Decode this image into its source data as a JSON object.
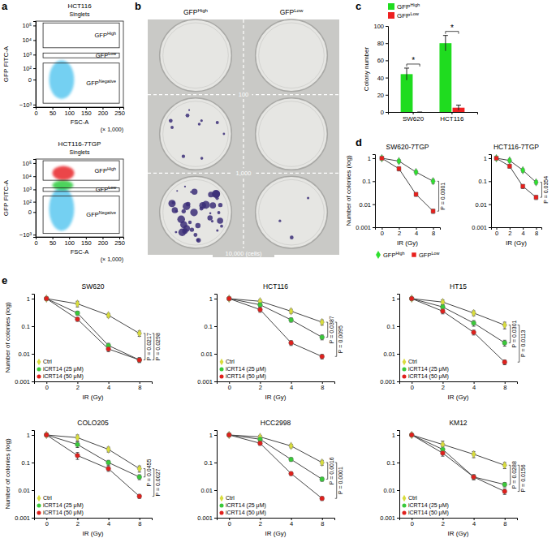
{
  "chart_data": [
    {
      "panel": "a",
      "type": "scatter",
      "title": "HCT116",
      "subtitle": "Singlets",
      "x_label": "FSC-A",
      "x_unit": "(× 1,000)",
      "y_label": "GFP FITC-A",
      "log": "y",
      "xlim": [
        0,
        262
      ],
      "xticks": [
        0,
        50,
        100,
        150,
        200,
        250
      ],
      "ylim": [
        -1500,
        200000
      ],
      "yticks": [
        {
          "value": -1000,
          "label": "−10³"
        },
        0,
        {
          "value": 100,
          "label": "10²"
        },
        {
          "value": 1000,
          "label": "10³"
        },
        {
          "value": 10000,
          "label": "10⁴"
        },
        {
          "value": 100000,
          "label": "10⁵"
        }
      ],
      "gates": [
        {
          "name": "GFPHigh",
          "x": [
            22,
            250
          ],
          "y": [
            3000,
            150000
          ]
        },
        {
          "name": "GFPLow",
          "x": [
            22,
            250
          ],
          "y": [
            600,
            1300
          ]
        },
        {
          "name": "GFPNegative",
          "x": [
            22,
            250
          ],
          "y": [
            -800,
            250
          ]
        }
      ],
      "clusters": [
        {
          "color": "#5bc8f0",
          "x": [
            40,
            115
          ],
          "y": [
            -400,
            400
          ]
        }
      ]
    },
    {
      "type": "scatter",
      "title": "HCT116-7TGP",
      "subtitle": "Singlets",
      "x_label": "FSC-A",
      "x_unit": "(× 1,000)",
      "y_label": "GFP FITC-A",
      "log": "y",
      "xlim": [
        0,
        262
      ],
      "xticks": [
        0,
        50,
        100,
        150,
        200,
        250
      ],
      "ylim": [
        -1500,
        200000
      ],
      "yticks": [
        {
          "value": -1000,
          "label": "−10³"
        },
        0,
        {
          "value": 100,
          "label": "10²"
        },
        {
          "value": 1000,
          "label": "10³"
        },
        {
          "value": 10000,
          "label": "10⁴"
        },
        {
          "value": 100000,
          "label": "10⁵"
        }
      ],
      "gates": [
        {
          "name": "GFPHigh",
          "x": [
            22,
            250
          ],
          "y": [
            5000,
            150000
          ]
        },
        {
          "name": "GFPLow",
          "x": [
            22,
            250
          ],
          "y": [
            700,
            1300
          ]
        },
        {
          "name": "GFPNegative",
          "x": [
            22,
            250
          ],
          "y": [
            -800,
            300
          ]
        }
      ],
      "clusters": [
        {
          "color": "#5bc8f0",
          "x": [
            40,
            115
          ],
          "y": [
            -500,
            1500
          ]
        },
        {
          "color": "#2ecc40",
          "x": [
            50,
            112
          ],
          "y": [
            900,
            5000
          ]
        },
        {
          "color": "#e8262a",
          "x": [
            50,
            115
          ],
          "y": [
            5000,
            60000
          ]
        }
      ]
    },
    {
      "panel": "b",
      "type": "image",
      "column_labels": [
        "GFPHigh",
        "GFPLow"
      ],
      "row_labels": [
        "100",
        "1,000",
        "10,000 (cells)"
      ]
    },
    {
      "panel": "c",
      "type": "bar",
      "y_label": "Colony number",
      "categories": [
        "SW620",
        "HCT116"
      ],
      "legend": "top-left",
      "ylim": [
        0,
        100
      ],
      "yticks": [
        0,
        20,
        40,
        60,
        80,
        100
      ],
      "series": [
        {
          "name": "GFPHigh",
          "color": "#1fdc1f",
          "values": [
            44,
            80
          ],
          "errors": [
            7,
            9
          ]
        },
        {
          "name": "GFPLow",
          "color": "#ee2020",
          "values": [
            0,
            5
          ],
          "errors": [
            0,
            3
          ]
        }
      ],
      "annotations": [
        "*",
        "*"
      ]
    },
    {
      "panel": "d",
      "type": "line",
      "title": "SW620-7TGP",
      "x_label": "IR (Gy)",
      "y_label": "Number of colonies (log)",
      "categories": [
        "0",
        "2",
        "4",
        "8"
      ],
      "log": "y",
      "legend": "bottom",
      "ylim": [
        0.001,
        1.5
      ],
      "yticks": [
        0.001,
        0.01,
        0.1,
        1
      ],
      "series": [
        {
          "name": "GFPHigh",
          "color": "#2ee02e",
          "marker": "diamond",
          "values": [
            1,
            0.75,
            0.25,
            0.1
          ],
          "errors": [
            0.05,
            0.12,
            0.04,
            0.02
          ]
        },
        {
          "name": "GFPLow",
          "color": "#e8201c",
          "marker": "square",
          "values": [
            1,
            0.35,
            0.027,
            0.005
          ],
          "errors": [
            0.05,
            0.07,
            0.005,
            0.001
          ]
        }
      ],
      "annotations": [
        "P = 0.0001"
      ]
    },
    {
      "type": "line",
      "title": "HCT116-7TGP",
      "x_label": "IR (Gy)",
      "categories": [
        "0",
        "2",
        "4",
        "8"
      ],
      "log": "y",
      "ylim": [
        0.001,
        1.5
      ],
      "yticks": [
        0.001,
        0.01,
        0.1,
        1
      ],
      "series": [
        {
          "color": "#2ee02e",
          "marker": "diamond",
          "values": [
            1,
            0.8,
            0.3,
            0.09
          ],
          "errors": [
            0.05,
            0.12,
            0.05,
            0.015
          ]
        },
        {
          "color": "#e8201c",
          "marker": "square",
          "values": [
            1,
            0.45,
            0.06,
            0.02
          ],
          "errors": [
            0.05,
            0.08,
            0.012,
            0.004
          ]
        }
      ],
      "annotations": [
        "P = 0.0354"
      ]
    },
    {
      "panel": "e",
      "type": "line",
      "title": "SW620",
      "x_label": "IR (Gy)",
      "y_label": "Number of colonies (log)",
      "categories": [
        "0",
        "2",
        "4",
        "8"
      ],
      "log": "y",
      "legend": "bottom-left",
      "ylim": [
        0.001,
        1.5
      ],
      "yticks": [
        0.001,
        0.01,
        0.1,
        1
      ],
      "series": [
        {
          "name": "Ctrl",
          "color": "#d8dc3c",
          "marker": "diamond",
          "values": [
            1,
            0.65,
            0.25,
            0.055
          ],
          "errors": [
            0.05,
            0.15,
            0.04,
            0.012
          ]
        },
        {
          "name": "iCRT14 (25 μM)",
          "color": "#39c939",
          "marker": "circle",
          "values": [
            1,
            0.3,
            0.02,
            0.006
          ],
          "errors": [
            0.05,
            0.05,
            0.004,
            0.0012
          ]
        },
        {
          "name": "iCRT14 (50 μM)",
          "color": "#e0201c",
          "marker": "circle",
          "values": [
            1,
            0.18,
            0.015,
            0.006
          ],
          "errors": [
            0.05,
            0.03,
            0.003,
            0.001
          ]
        }
      ],
      "annotations": [
        "P = 0.0217",
        "P = 0.0298"
      ]
    },
    {
      "type": "line",
      "title": "HCT116",
      "x_label": "IR (Gy)",
      "categories": [
        "0",
        "2",
        "4",
        "8"
      ],
      "log": "y",
      "legend": "bottom-left",
      "ylim": [
        0.001,
        1.5
      ],
      "yticks": [
        0.001,
        0.01,
        0.1,
        1
      ],
      "series": [
        {
          "name": "Ctrl",
          "color": "#d8dc3c",
          "marker": "diamond",
          "values": [
            1,
            0.8,
            0.35,
            0.14
          ],
          "errors": [
            0.05,
            0.12,
            0.06,
            0.03
          ]
        },
        {
          "name": "iCRT14 (25 μM)",
          "color": "#39c939",
          "marker": "circle",
          "values": [
            1,
            0.6,
            0.17,
            0.04
          ],
          "errors": [
            0.05,
            0.1,
            0.03,
            0.008
          ]
        },
        {
          "name": "iCRT14 (50 μM)",
          "color": "#e0201c",
          "marker": "circle",
          "values": [
            1,
            0.4,
            0.025,
            0.008
          ],
          "errors": [
            0.05,
            0.08,
            0.005,
            0.0015
          ]
        }
      ],
      "annotations": [
        "P = 0.0387",
        "P = 0.0095"
      ]
    },
    {
      "type": "line",
      "title": "HT15",
      "x_label": "IR (Gy)",
      "categories": [
        "0",
        "2",
        "4",
        "8"
      ],
      "log": "y",
      "legend": "bottom-left",
      "ylim": [
        0.001,
        1.5
      ],
      "yticks": [
        0.001,
        0.01,
        0.1,
        1
      ],
      "series": [
        {
          "name": "Ctrl",
          "color": "#d8dc3c",
          "marker": "diamond",
          "values": [
            1,
            0.75,
            0.3,
            0.11
          ],
          "errors": [
            0.05,
            0.15,
            0.06,
            0.03
          ]
        },
        {
          "name": "iCRT14 (25 μM)",
          "color": "#39c939",
          "marker": "circle",
          "values": [
            1,
            0.5,
            0.13,
            0.025
          ],
          "errors": [
            0.05,
            0.1,
            0.03,
            0.006
          ]
        },
        {
          "name": "iCRT14 (50 μM)",
          "color": "#e0201c",
          "marker": "circle",
          "values": [
            1,
            0.35,
            0.06,
            0.005
          ],
          "errors": [
            0.05,
            0.07,
            0.012,
            0.001
          ]
        }
      ],
      "annotations": [
        "P = 0.0301",
        "P = 0.0113"
      ]
    },
    {
      "type": "line",
      "title": "COLO205",
      "x_label": "IR (Gy)",
      "y_label": "Number of colonies (log)",
      "categories": [
        "0",
        "2",
        "4",
        "8"
      ],
      "log": "y",
      "legend": "bottom-left",
      "ylim": [
        0.001,
        1.5
      ],
      "yticks": [
        0.001,
        0.01,
        0.1,
        1
      ],
      "series": [
        {
          "name": "Ctrl",
          "color": "#d8dc3c",
          "marker": "diamond",
          "values": [
            1,
            0.8,
            0.3,
            0.06
          ],
          "errors": [
            0.05,
            0.2,
            0.06,
            0.015
          ]
        },
        {
          "name": "iCRT14 (25 μM)",
          "color": "#39c939",
          "marker": "circle",
          "values": [
            1,
            0.45,
            0.1,
            0.03
          ],
          "errors": [
            0.05,
            0.1,
            0.02,
            0.006
          ]
        },
        {
          "name": "iCRT14 (50 μM)",
          "color": "#e0201c",
          "marker": "circle",
          "values": [
            1,
            0.18,
            0.06,
            0.006
          ],
          "errors": [
            0.05,
            0.05,
            0.012,
            0.001
          ]
        }
      ],
      "annotations": [
        "P = 0.0455",
        "P = 0.0027"
      ]
    },
    {
      "type": "line",
      "title": "HCC2998",
      "x_label": "IR (Gy)",
      "categories": [
        "0",
        "2",
        "4",
        "8"
      ],
      "log": "y",
      "legend": "bottom-left",
      "ylim": [
        0.001,
        1.5
      ],
      "yticks": [
        0.001,
        0.01,
        0.1,
        1
      ],
      "series": [
        {
          "name": "Ctrl",
          "color": "#d8dc3c",
          "marker": "diamond",
          "values": [
            1,
            0.85,
            0.4,
            0.1
          ],
          "errors": [
            0.05,
            0.12,
            0.06,
            0.02
          ]
        },
        {
          "name": "iCRT14 (25 μM)",
          "color": "#39c939",
          "marker": "circle",
          "values": [
            1,
            0.7,
            0.13,
            0.025
          ],
          "errors": [
            0.05,
            0.1,
            0.02,
            0.004
          ]
        },
        {
          "name": "iCRT14 (50 μM)",
          "color": "#e0201c",
          "marker": "circle",
          "values": [
            1,
            0.5,
            0.04,
            0.005
          ],
          "errors": [
            0.05,
            0.08,
            0.006,
            0.0008
          ]
        }
      ],
      "annotations": [
        "P = 0.0016",
        "P = 0.0001"
      ]
    },
    {
      "type": "line",
      "title": "KM12",
      "x_label": "IR (Gy)",
      "categories": [
        "0",
        "2",
        "4",
        "8"
      ],
      "log": "y",
      "legend": "bottom-left",
      "ylim": [
        0.001,
        1.5
      ],
      "yticks": [
        0.001,
        0.01,
        0.1,
        1
      ],
      "series": [
        {
          "name": "Ctrl",
          "color": "#d8dc3c",
          "marker": "diamond",
          "values": [
            1,
            0.45,
            0.2,
            0.08
          ],
          "errors": [
            0.05,
            0.15,
            0.05,
            0.02
          ]
        },
        {
          "name": "iCRT14 (25 μM)",
          "color": "#39c939",
          "marker": "circle",
          "values": [
            1,
            0.3,
            0.03,
            0.016
          ],
          "errors": [
            0.05,
            0.08,
            0.006,
            0.003
          ]
        },
        {
          "name": "iCRT14 (50 μM)",
          "color": "#e0201c",
          "marker": "circle",
          "values": [
            1,
            0.22,
            0.03,
            0.009
          ],
          "errors": [
            0.05,
            0.05,
            0.006,
            0.002
          ]
        }
      ],
      "annotations": [
        "P = 0.0288",
        "P = 0.0156"
      ]
    }
  ]
}
